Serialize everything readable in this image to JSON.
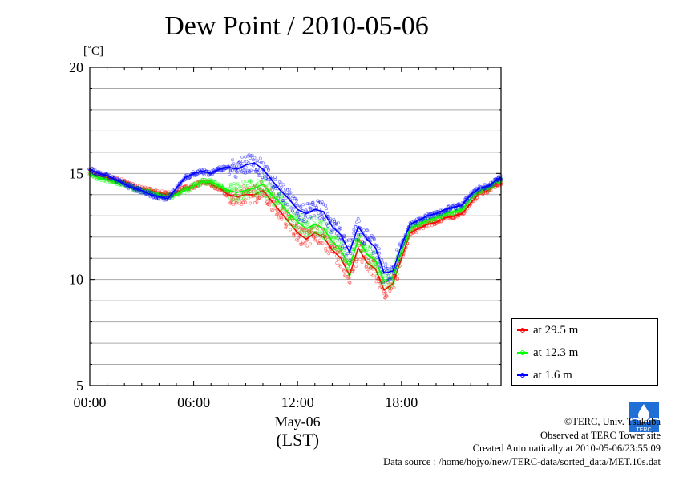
{
  "page": {
    "title": "Dew Point / 2010-05-06",
    "unit_label": "[˚C]"
  },
  "chart_data": {
    "type": "line",
    "title": "Dew Point / 2010-05-06",
    "ylabel": "[˚C]",
    "xlabel_date": "May-06",
    "xlabel_tz": "(LST)",
    "ylim": [
      5,
      20
    ],
    "xlim": [
      0,
      23.75
    ],
    "yticks": [
      5,
      10,
      15,
      20
    ],
    "xticks": [
      0,
      6,
      12,
      18
    ],
    "xtick_labels": [
      "00:00",
      "06:00",
      "12:00",
      "18:00"
    ],
    "grid": true,
    "legend_position": "bottom-right",
    "series": [
      {
        "name": "at 29.5 m",
        "color": "#ff0000",
        "x": [
          0,
          0.5,
          1,
          1.5,
          2,
          2.5,
          3,
          3.5,
          4,
          4.5,
          5,
          5.5,
          6,
          6.5,
          7,
          7.5,
          8,
          8.5,
          9,
          9.5,
          10,
          10.5,
          11,
          11.5,
          12,
          12.5,
          13,
          13.5,
          14,
          14.5,
          15,
          15.5,
          16,
          16.5,
          17,
          17.5,
          18,
          18.5,
          19,
          19.5,
          20,
          20.5,
          21,
          21.5,
          22,
          22.5,
          23,
          23.5,
          23.75
        ],
        "y": [
          15.1,
          14.9,
          14.8,
          14.7,
          14.6,
          14.4,
          14.3,
          14.2,
          14.1,
          14.0,
          14.1,
          14.3,
          14.4,
          14.6,
          14.5,
          14.3,
          14.0,
          13.9,
          14.0,
          14.0,
          14.2,
          13.7,
          13.2,
          12.7,
          12.2,
          11.9,
          12.2,
          12.0,
          11.4,
          11.0,
          10.2,
          11.5,
          10.8,
          10.5,
          9.5,
          9.8,
          11.0,
          12.2,
          12.4,
          12.6,
          12.7,
          12.9,
          13.0,
          13.1,
          13.6,
          14.1,
          14.2,
          14.5,
          14.6
        ]
      },
      {
        "name": "at 12.3 m",
        "color": "#00ff00",
        "x": [
          0,
          0.5,
          1,
          1.5,
          2,
          2.5,
          3,
          3.5,
          4,
          4.5,
          5,
          5.5,
          6,
          6.5,
          7,
          7.5,
          8,
          8.5,
          9,
          9.5,
          10,
          10.5,
          11,
          11.5,
          12,
          12.5,
          13,
          13.5,
          14,
          14.5,
          15,
          15.5,
          16,
          16.5,
          17,
          17.5,
          18,
          18.5,
          19,
          19.5,
          20,
          20.5,
          21,
          21.5,
          22,
          22.5,
          23,
          23.5,
          23.75
        ],
        "y": [
          15.0,
          14.8,
          14.7,
          14.6,
          14.5,
          14.3,
          14.2,
          14.1,
          14.0,
          13.9,
          14.0,
          14.2,
          14.4,
          14.6,
          14.6,
          14.4,
          14.2,
          14.1,
          14.2,
          14.3,
          14.5,
          14.0,
          13.6,
          13.1,
          12.7,
          12.4,
          12.6,
          12.4,
          11.8,
          11.4,
          10.6,
          11.9,
          11.2,
          10.9,
          9.9,
          10.1,
          11.3,
          12.4,
          12.6,
          12.8,
          12.9,
          13.1,
          13.2,
          13.3,
          13.8,
          14.2,
          14.3,
          14.6,
          14.7
        ]
      },
      {
        "name": "at 1.6 m",
        "color": "#0000ff",
        "x": [
          0,
          0.5,
          1,
          1.5,
          2,
          2.5,
          3,
          3.5,
          4,
          4.5,
          5,
          5.5,
          6,
          6.5,
          7,
          7.5,
          8,
          8.5,
          9,
          9.5,
          10,
          10.5,
          11,
          11.5,
          12,
          12.5,
          13,
          13.5,
          14,
          14.5,
          15,
          15.5,
          16,
          16.5,
          17,
          17.5,
          18,
          18.5,
          19,
          19.5,
          20,
          20.5,
          21,
          21.5,
          22,
          22.5,
          23,
          23.5,
          23.75
        ],
        "y": [
          15.2,
          15.0,
          14.9,
          14.7,
          14.5,
          14.3,
          14.2,
          14.0,
          13.9,
          13.8,
          14.3,
          14.8,
          15.0,
          15.1,
          15.0,
          15.2,
          15.3,
          15.2,
          15.4,
          15.5,
          15.2,
          14.7,
          14.2,
          13.8,
          13.3,
          13.1,
          13.3,
          13.2,
          12.5,
          12.1,
          11.3,
          12.5,
          11.9,
          11.5,
          10.3,
          10.4,
          11.6,
          12.6,
          12.8,
          13.0,
          13.1,
          13.3,
          13.4,
          13.5,
          14.0,
          14.3,
          14.4,
          14.7,
          14.8
        ]
      }
    ]
  },
  "footer": {
    "copyright": "©TERC, Univ. Tsukuba",
    "observed": "Observed at TERC Tower site",
    "created": "Created Automatically at 2010-05-06/23:55:09",
    "source": "Data source : /home/hojyo/new/TERC-data/sorted_data/MET.10s.dat"
  },
  "logo": {
    "text": "TERC"
  }
}
